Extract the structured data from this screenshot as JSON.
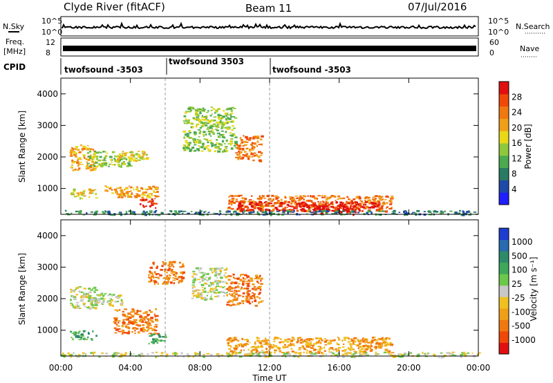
{
  "header": {
    "station": "Clyde River (fitACF)",
    "beam": "Beam 11",
    "date": "07/Jul/2016"
  },
  "labels": {
    "nsky": "N.Sky",
    "nsearch": "N.Search",
    "freq_line1": "Freq.",
    "freq_line2": "[MHz]",
    "nave": "Nave",
    "cpid": "CPID",
    "slant_range": "Slant Range [km]",
    "time_axis": "Time UT",
    "power_bar": "Power [dB]",
    "velocity_bar": "Velocity [m s⁻¹]"
  },
  "noise_axis": {
    "left_ticks": [
      "10^5",
      "10^0"
    ],
    "right_ticks": [
      "10^5",
      "10^0"
    ]
  },
  "freq_axis": {
    "left_ticks": [
      "12",
      "8"
    ],
    "right_ticks": [
      "60",
      "0"
    ]
  },
  "cpid_segments": [
    {
      "label": "twofsound -3503",
      "start_hour": 0
    },
    {
      "label": "twofsound 3503",
      "start_hour": 6
    },
    {
      "label": "twofsound -3503",
      "start_hour": 12
    }
  ],
  "chart_data": [
    {
      "type": "heatmap",
      "name": "power",
      "ylabel": "Slant Range [km]",
      "xlabel": "",
      "xlim": [
        0,
        24
      ],
      "ylim": [
        180,
        4500
      ],
      "x_ticks": [
        "00:00",
        "04:00",
        "08:00",
        "12:00",
        "16:00",
        "20:00",
        "00:00"
      ],
      "y_ticks": [
        1000,
        2000,
        3000,
        4000
      ],
      "colorbar": {
        "label": "Power [dB]",
        "ticks": [
          "4",
          "8",
          "12",
          "16",
          "20",
          "24",
          "28"
        ],
        "colors": [
          "#1f1fff",
          "#1f4aa8",
          "#2a7a64",
          "#4caa50",
          "#90c83c",
          "#e8d818",
          "#f0a018",
          "#f07810",
          "#f04808",
          "#e01010"
        ]
      },
      "regions": [
        {
          "t0": 0.5,
          "t1": 2.0,
          "r0": 1600,
          "r1": 2400,
          "level": 6
        },
        {
          "t0": 1.5,
          "t1": 4.0,
          "r0": 1700,
          "r1": 2200,
          "level": 4
        },
        {
          "t0": 0.5,
          "t1": 2.0,
          "r0": 700,
          "r1": 1000,
          "level": 5
        },
        {
          "t0": 2.5,
          "t1": 5.5,
          "r0": 700,
          "r1": 1100,
          "level": 6
        },
        {
          "t0": 3.0,
          "t1": 5.0,
          "r0": 1900,
          "r1": 2200,
          "level": 5
        },
        {
          "t0": 4.5,
          "t1": 5.5,
          "r0": 400,
          "r1": 700,
          "level": 9
        },
        {
          "t0": 7.0,
          "t1": 10.0,
          "r0": 2200,
          "r1": 3600,
          "level": 4
        },
        {
          "t0": 10.0,
          "t1": 11.5,
          "r0": 1900,
          "r1": 2700,
          "level": 7
        },
        {
          "t0": 9.5,
          "t1": 19.0,
          "r0": 300,
          "r1": 800,
          "level": 7
        },
        {
          "t0": 10.0,
          "t1": 18.5,
          "r0": 300,
          "r1": 600,
          "level": 9
        },
        {
          "t0": 14.0,
          "t1": 17.0,
          "r0": 200,
          "r1": 500,
          "level": 9
        },
        {
          "t0": 0.0,
          "t1": 24.0,
          "r0": 180,
          "r1": 320,
          "level": 2
        }
      ]
    },
    {
      "type": "heatmap",
      "name": "velocity",
      "ylabel": "Slant Range [km]",
      "xlabel": "Time UT",
      "xlim": [
        0,
        24
      ],
      "ylim": [
        180,
        4500
      ],
      "x_ticks": [
        "00:00",
        "04:00",
        "08:00",
        "12:00",
        "16:00",
        "20:00",
        "00:00"
      ],
      "y_ticks": [
        1000,
        2000,
        3000,
        4000
      ],
      "colorbar": {
        "label": "Velocity [m s⁻¹]",
        "ticks": [
          "1000",
          "500",
          "100",
          "25",
          "-25",
          "-100",
          "-500",
          "-1000"
        ],
        "colors": [
          "#1e3cd0",
          "#2a6ab0",
          "#2f8a6a",
          "#3ea85a",
          "#6cc84a",
          "#c8c8c8",
          "#f0c020",
          "#f0a018",
          "#f07810",
          "#f04808",
          "#e01010"
        ]
      },
      "regions": [
        {
          "t0": 0.5,
          "t1": 2.0,
          "r0": 1700,
          "r1": 2400,
          "level": 5
        },
        {
          "t0": 1.5,
          "t1": 3.5,
          "r0": 1800,
          "r1": 2200,
          "level": 5
        },
        {
          "t0": 0.5,
          "t1": 2.0,
          "r0": 700,
          "r1": 1000,
          "level": 3
        },
        {
          "t0": 3.0,
          "t1": 5.5,
          "r0": 900,
          "r1": 1700,
          "level": 8
        },
        {
          "t0": 5.0,
          "t1": 7.0,
          "r0": 2500,
          "r1": 3200,
          "level": 8
        },
        {
          "t0": 7.5,
          "t1": 9.5,
          "r0": 2000,
          "r1": 3000,
          "level": 5
        },
        {
          "t0": 9.5,
          "t1": 11.5,
          "r0": 1800,
          "r1": 2800,
          "level": 8
        },
        {
          "t0": 9.5,
          "t1": 19.0,
          "r0": 300,
          "r1": 800,
          "level": 7
        },
        {
          "t0": 5.0,
          "t1": 6.0,
          "r0": 600,
          "r1": 900,
          "level": 3
        },
        {
          "t0": 0.0,
          "t1": 24.0,
          "r0": 180,
          "r1": 320,
          "level": 5
        }
      ]
    }
  ]
}
